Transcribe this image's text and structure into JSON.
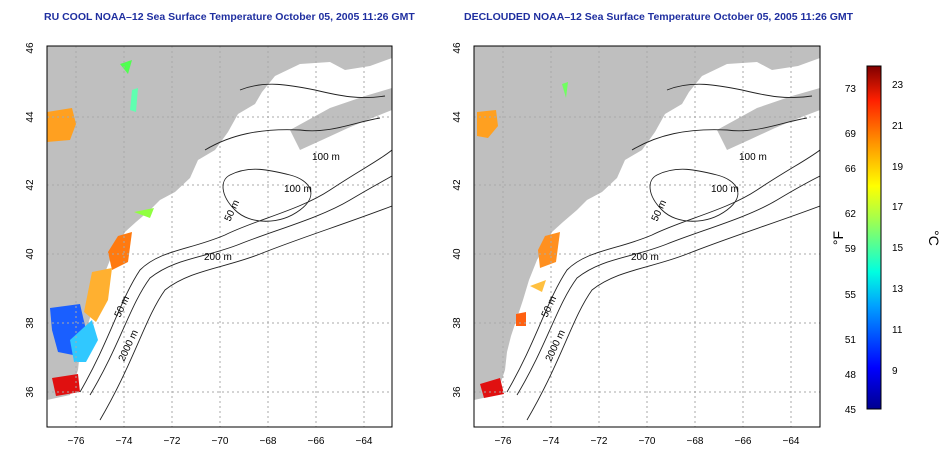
{
  "titles": {
    "left": "RU COOL NOAA–12 Sea Surface Temperature October 05, 2005 11:26 GMT",
    "right": "DECLOUDED NOAA–12 Sea Surface Temperature October 05, 2005 11:26 GMT"
  },
  "axes": {
    "lat_ticks": [
      "46",
      "44",
      "42",
      "40",
      "38",
      "36"
    ],
    "lon_ticks": [
      "−76",
      "−74",
      "−72",
      "−70",
      "−68",
      "−66",
      "−64"
    ]
  },
  "contour_labels": {
    "m100_a": "100 m",
    "m100_b": "100 m",
    "m50_a": "50 m",
    "m50_b": "50 m",
    "m200": "200 m",
    "m2000": "2000 m"
  },
  "colorbar": {
    "unit_f": "°F",
    "unit_c": "°C",
    "f_ticks": [
      "73",
      "69",
      "66",
      "62",
      "59",
      "55",
      "51",
      "48",
      "45"
    ],
    "c_ticks": [
      "23",
      "21",
      "19",
      "17",
      "15",
      "13",
      "11",
      "9"
    ]
  },
  "colors": {
    "land": "#bfbfbf",
    "title": "#1f2fa0",
    "grid": "#aaaaaa"
  }
}
